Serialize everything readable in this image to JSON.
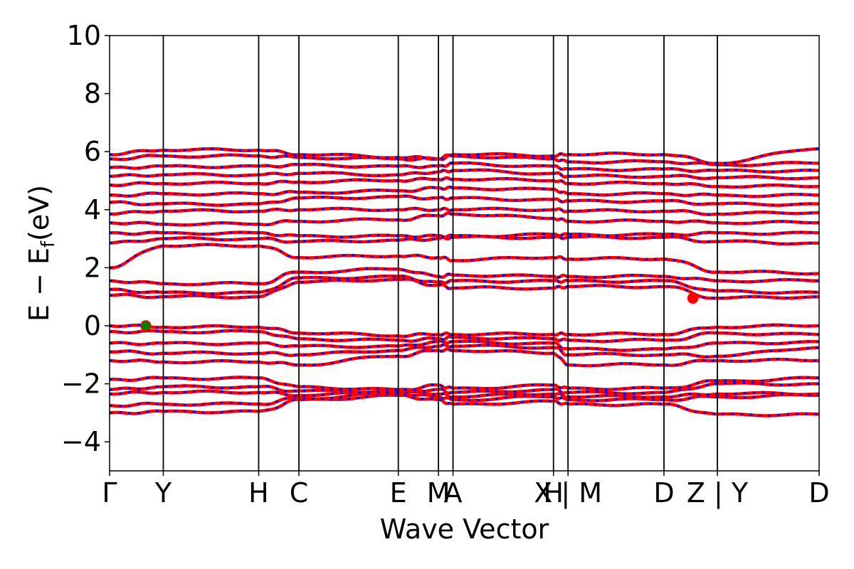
{
  "chart_data": {
    "type": "line",
    "title": "",
    "xlabel": "Wave Vector",
    "ylabel_main": "E − E",
    "ylabel_sub": "f",
    "ylabel_unit": "(eV)",
    "ylim": [
      -5,
      10
    ],
    "yticks": [
      -4,
      -2,
      0,
      2,
      4,
      6,
      8,
      10
    ],
    "ytick_labels": [
      "−4",
      "−2",
      "0",
      "2",
      "4",
      "6",
      "8",
      "10"
    ],
    "xlim": [
      0,
      1
    ],
    "kpoints": [
      {
        "pos": 0.0,
        "label": "Γ"
      },
      {
        "pos": 0.0757,
        "label": "Y"
      },
      {
        "pos": 0.2101,
        "label": "H"
      },
      {
        "pos": 0.2668,
        "label": "C"
      },
      {
        "pos": 0.4069,
        "label": "E"
      },
      {
        "pos": 0.4635,
        "label": "M"
      },
      {
        "pos": 0.484,
        "label": "A"
      },
      {
        "pos": 0.6256,
        "label": "H"
      },
      {
        "pos": 0.6461,
        "label": "X | M"
      },
      {
        "pos": 0.7813,
        "label": "D"
      },
      {
        "pos": 0.8566,
        "label": "Z | Y"
      },
      {
        "pos": 1.0,
        "label": "D"
      }
    ],
    "special_points": [
      {
        "name": "valence band maximum",
        "x": 0.051,
        "y": 0.0,
        "color": "#008000"
      },
      {
        "name": "conduction band minimum",
        "x": 0.822,
        "y": 0.95,
        "color": "#ff0000"
      }
    ],
    "colors": {
      "up": "#ff0000",
      "down": "#0000ff",
      "kline": "#000000"
    },
    "band_seeds": [
      [
        -3.0,
        -2.95,
        -2.95,
        -2.55,
        -2.4,
        -2.55,
        -2.7,
        -2.6,
        -2.7,
        -2.7,
        -3.05,
        -3.05,
        -3.05
      ],
      [
        -2.75,
        -2.7,
        -2.7,
        -2.5,
        -2.35,
        -2.45,
        -2.55,
        -2.45,
        -2.55,
        -2.55,
        -2.45,
        -2.4,
        -2.45
      ],
      [
        -2.35,
        -2.3,
        -2.3,
        -2.4,
        -2.3,
        -2.35,
        -2.45,
        -2.35,
        -2.45,
        -2.45,
        -2.35,
        -2.35,
        -2.35
      ],
      [
        -2.2,
        -2.1,
        -2.1,
        -2.25,
        -2.25,
        -2.2,
        -2.3,
        -2.2,
        -2.3,
        -2.3,
        -2.0,
        -2.0,
        -2.0
      ],
      [
        -1.85,
        -1.8,
        -1.8,
        -2.1,
        -2.2,
        -2.05,
        -2.15,
        -2.05,
        -2.15,
        -2.15,
        -1.9,
        -1.8,
        -1.9
      ],
      [
        -1.2,
        -1.25,
        -1.25,
        -1.35,
        -1.05,
        -0.85,
        -0.85,
        -0.95,
        -1.35,
        -1.35,
        -1.2,
        -1.2,
        -1.2
      ],
      [
        -0.9,
        -0.95,
        -0.95,
        -1.0,
        -0.85,
        -0.7,
        -0.7,
        -0.75,
        -1.0,
        -1.0,
        -1.05,
        -0.75,
        -0.75
      ],
      [
        -0.6,
        -0.6,
        -0.6,
        -0.7,
        -0.7,
        -0.55,
        -0.55,
        -0.6,
        -0.8,
        -0.8,
        -0.6,
        -0.55,
        -0.55
      ],
      [
        -0.2,
        -0.2,
        -0.2,
        -0.45,
        -0.5,
        -0.45,
        -0.4,
        -0.45,
        -0.5,
        -0.5,
        -0.25,
        -0.3,
        -0.3
      ],
      [
        0.0,
        -0.05,
        -0.05,
        -0.25,
        -0.35,
        -0.3,
        -0.3,
        -0.3,
        -0.3,
        -0.3,
        -0.05,
        0.0,
        0.0
      ],
      [
        1.05,
        1.0,
        1.0,
        1.5,
        1.6,
        1.4,
        1.3,
        1.3,
        1.35,
        1.35,
        0.95,
        1.0,
        1.0
      ],
      [
        1.25,
        1.15,
        1.15,
        1.65,
        1.7,
        1.5,
        1.55,
        1.55,
        1.55,
        1.55,
        1.2,
        1.15,
        1.2
      ],
      [
        1.55,
        1.45,
        1.45,
        1.85,
        1.95,
        1.7,
        1.75,
        1.7,
        1.7,
        1.7,
        1.55,
        1.55,
        1.6
      ],
      [
        2.0,
        2.75,
        2.75,
        2.35,
        2.4,
        2.35,
        2.25,
        2.35,
        2.3,
        2.3,
        1.85,
        1.8,
        1.8
      ],
      [
        2.85,
        3.0,
        3.0,
        2.9,
        2.95,
        3.0,
        3.05,
        3.05,
        3.05,
        3.05,
        2.9,
        2.85,
        2.85
      ],
      [
        3.2,
        3.2,
        3.2,
        3.1,
        3.1,
        3.1,
        3.1,
        3.15,
        3.15,
        3.15,
        3.2,
        3.2,
        3.2
      ],
      [
        3.55,
        3.5,
        3.5,
        3.6,
        3.65,
        3.8,
        3.85,
        3.7,
        3.6,
        3.6,
        3.55,
        3.55,
        3.5
      ],
      [
        3.85,
        3.95,
        3.95,
        4.0,
        4.0,
        4.0,
        4.0,
        4.0,
        3.95,
        3.95,
        3.85,
        3.9,
        3.9
      ],
      [
        4.25,
        4.2,
        4.2,
        4.4,
        4.45,
        4.4,
        4.4,
        4.35,
        4.3,
        4.3,
        4.2,
        4.2,
        4.2
      ],
      [
        4.5,
        4.55,
        4.55,
        4.6,
        4.65,
        4.75,
        4.75,
        4.7,
        4.55,
        4.55,
        4.5,
        4.5,
        4.45
      ],
      [
        4.85,
        4.9,
        4.9,
        4.95,
        5.0,
        5.05,
        5.05,
        5.0,
        4.9,
        4.9,
        4.8,
        4.8,
        4.8
      ],
      [
        5.15,
        5.2,
        5.2,
        5.25,
        5.2,
        5.3,
        5.35,
        5.25,
        5.15,
        5.15,
        5.1,
        5.1,
        5.05
      ],
      [
        5.45,
        5.5,
        5.5,
        5.55,
        5.5,
        5.5,
        5.6,
        5.5,
        5.4,
        5.4,
        5.35,
        5.35,
        5.3
      ],
      [
        5.75,
        5.85,
        5.85,
        5.8,
        5.75,
        5.75,
        5.85,
        5.75,
        5.65,
        5.65,
        5.55,
        5.6,
        5.55
      ],
      [
        5.9,
        6.05,
        6.05,
        5.9,
        5.8,
        5.75,
        5.9,
        5.85,
        5.9,
        5.9,
        5.6,
        6.1,
        5.6
      ]
    ]
  }
}
